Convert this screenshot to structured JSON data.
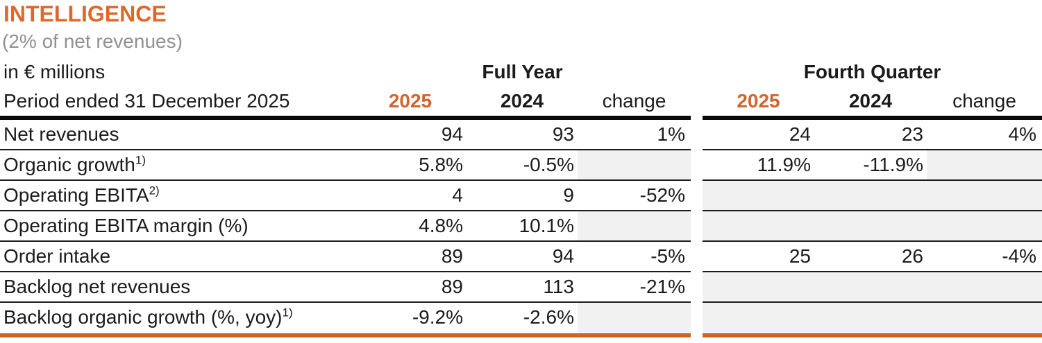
{
  "header": {
    "title": "INTELLIGENCE",
    "subtitle": "(2% of net revenues)",
    "unit_label": "in € millions",
    "period_label": "Period ended 31 December 2025",
    "full_year_label": "Full Year",
    "fourth_quarter_label": "Fourth Quarter",
    "col_2025": "2025",
    "col_2024": "2024",
    "col_change": "change"
  },
  "colors": {
    "title_orange": "#DE682C",
    "year_header_orange": "#D4632E",
    "bottom_border_orange": "#CC6522",
    "shaded_cell_gray": "#F1F1F1",
    "subtitle_gray": "#919191",
    "text_black": "#1B1B1B"
  },
  "table": {
    "rows": [
      {
        "label": "Net revenues",
        "sup": "",
        "fy2025": "94",
        "fy2024": "93",
        "fychange": "1%",
        "q2025": "24",
        "q2024": "23",
        "qchange": "4%"
      },
      {
        "label": "Organic growth",
        "sup": "1)",
        "fy2025": "5.8%",
        "fy2024": "-0.5%",
        "fychange": "",
        "q2025": "11.9%",
        "q2024": "-11.9%",
        "qchange": ""
      },
      {
        "label": "Operating EBITA",
        "sup": "2)",
        "fy2025": "4",
        "fy2024": "9",
        "fychange": "-52%",
        "q2025": "",
        "q2024": "",
        "qchange": ""
      },
      {
        "label": "Operating EBITA margin (%)",
        "sup": "",
        "fy2025": "4.8%",
        "fy2024": "10.1%",
        "fychange": "",
        "q2025": "",
        "q2024": "",
        "qchange": ""
      },
      {
        "label": "Order intake",
        "sup": "",
        "fy2025": "89",
        "fy2024": "94",
        "fychange": "-5%",
        "q2025": "25",
        "q2024": "26",
        "qchange": "-4%"
      },
      {
        "label": "Backlog net revenues",
        "sup": "",
        "fy2025": "89",
        "fy2024": "113",
        "fychange": "-21%",
        "q2025": "",
        "q2024": "",
        "qchange": ""
      },
      {
        "label": "Backlog organic growth (%, yoy)",
        "sup": "1)",
        "fy2025": "-9.2%",
        "fy2024": "-2.6%",
        "fychange": "",
        "q2025": "",
        "q2024": "",
        "qchange": ""
      }
    ]
  }
}
